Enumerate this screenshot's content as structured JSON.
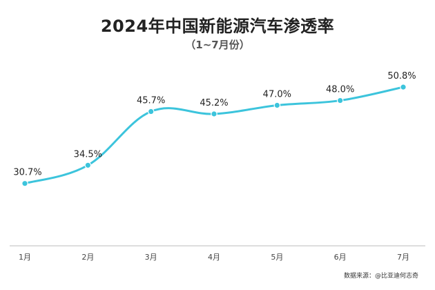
{
  "header": {
    "title": "2024年中国新能源汽车渗透率",
    "subtitle": "（1~7月份）"
  },
  "footer": {
    "source": "数据来源：@比亚迪何志奇"
  },
  "colors": {
    "line": "#3cc4dc",
    "axis": "#bbbbbb",
    "text": "#222222"
  },
  "chart_data": {
    "type": "line",
    "title": "2024年中国新能源汽车渗透率",
    "subtitle": "（1~7月份）",
    "categories": [
      "1月",
      "2月",
      "3月",
      "4月",
      "5月",
      "6月",
      "7月"
    ],
    "series": [
      {
        "name": "渗透率",
        "values": [
          30.7,
          34.5,
          45.7,
          45.2,
          47.0,
          48.0,
          50.8
        ],
        "labels": [
          "30.7%",
          "34.5%",
          "45.7%",
          "45.2%",
          "47.0%",
          "48.0%",
          "50.8%"
        ]
      }
    ],
    "ylim": [
      20,
      56
    ],
    "grid": false,
    "xlabel": "",
    "ylabel": ""
  }
}
